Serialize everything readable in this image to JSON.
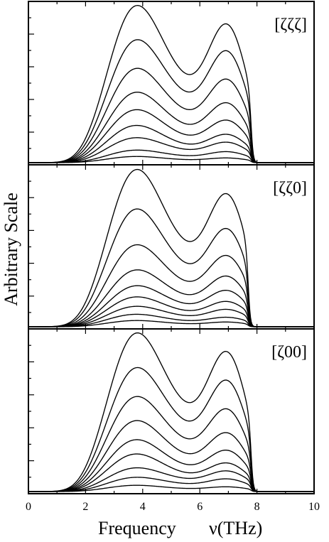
{
  "chart_data": {
    "type": "line",
    "xlabel": "Frequency",
    "xunit": "ν(THz)",
    "ylabel": "Arbitrary Scale",
    "xlim": [
      0,
      10
    ],
    "x_ticks": [
      "0",
      "2",
      "4",
      "6",
      "8",
      "10"
    ],
    "panels": [
      {
        "label": "[ζζζ]",
        "cutoff": 7.8,
        "series_peaks": [
          [
            0.04,
            0.03
          ],
          [
            0.08,
            0.07
          ],
          [
            0.16,
            0.13
          ],
          [
            0.24,
            0.18
          ],
          [
            0.34,
            0.27
          ],
          [
            0.45,
            0.38
          ],
          [
            0.6,
            0.53
          ],
          [
            0.78,
            0.71
          ],
          [
            1.0,
            0.88
          ]
        ]
      },
      {
        "label": "[ζζ0]",
        "cutoff": 7.7,
        "series_peaks": [
          [
            0.04,
            0.03
          ],
          [
            0.08,
            0.06
          ],
          [
            0.13,
            0.11
          ],
          [
            0.19,
            0.16
          ],
          [
            0.26,
            0.23
          ],
          [
            0.36,
            0.32
          ],
          [
            0.52,
            0.45
          ],
          [
            0.75,
            0.62
          ],
          [
            1.0,
            0.84
          ]
        ]
      },
      {
        "label": "[ζ00]",
        "cutoff": 7.8,
        "series_peaks": [
          [
            0.04,
            0.03
          ],
          [
            0.09,
            0.08
          ],
          [
            0.15,
            0.13
          ],
          [
            0.24,
            0.18
          ],
          [
            0.33,
            0.26
          ],
          [
            0.45,
            0.37
          ],
          [
            0.6,
            0.52
          ],
          [
            0.78,
            0.7
          ],
          [
            1.0,
            0.88
          ]
        ]
      }
    ]
  }
}
